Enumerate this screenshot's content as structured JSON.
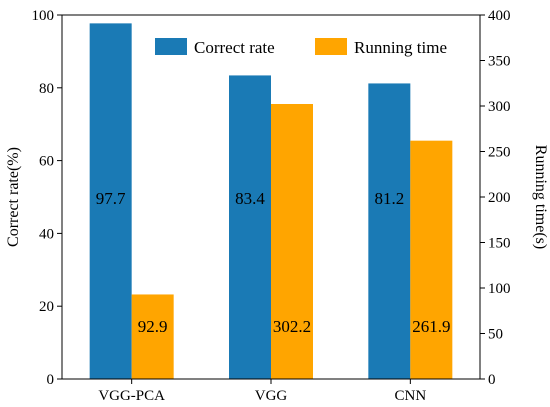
{
  "chart_data": {
    "type": "bar",
    "categories": [
      "VGG-PCA",
      "VGG",
      "CNN"
    ],
    "series": [
      {
        "name": "Correct rate",
        "axis": "left",
        "color": "#1a7ab5",
        "values": [
          97.7,
          83.4,
          81.2
        ],
        "labels": [
          "97.7",
          "83.4",
          "81.2"
        ]
      },
      {
        "name": "Running time",
        "axis": "right",
        "color": "#ffa500",
        "values": [
          92.9,
          302.2,
          261.9
        ],
        "labels": [
          "92.9",
          "302.2",
          "261.9"
        ]
      }
    ],
    "ylabel": "Correct rate(%)",
    "ylabel_right": "Running time(s)",
    "ylim": [
      0,
      100
    ],
    "ylim_right": [
      0,
      400
    ],
    "yticks": [
      "0",
      "20",
      "40",
      "60",
      "80",
      "100"
    ],
    "yticks_right": [
      "0",
      "50",
      "100",
      "150",
      "200",
      "250",
      "300",
      "350",
      "400"
    ],
    "grid": false,
    "legend_position": "top-right"
  }
}
